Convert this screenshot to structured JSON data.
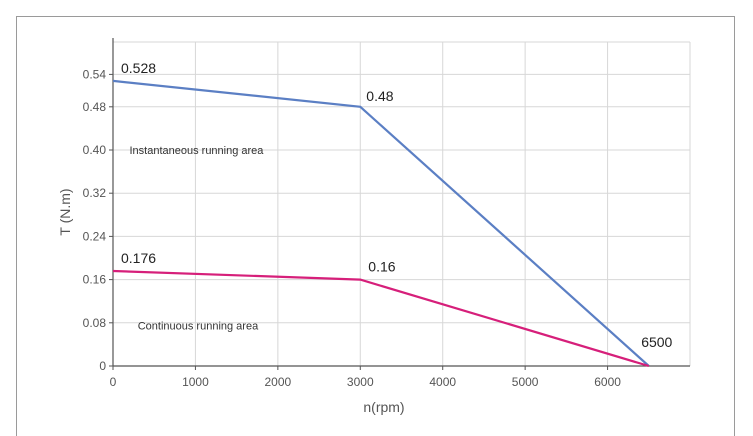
{
  "chart_data": {
    "type": "line",
    "title": "",
    "xlabel": "n(rpm)",
    "ylabel": "T (N.m)",
    "xlim": [
      0,
      7000
    ],
    "ylim": [
      0,
      0.6
    ],
    "grid": true,
    "x_ticks": [
      0,
      1000,
      2000,
      3000,
      4000,
      5000,
      6000
    ],
    "x_tick_labels": [
      "0",
      "1000",
      "2000",
      "3000",
      "4000",
      "5000",
      "6000"
    ],
    "y_ticks": [
      0,
      0.08,
      0.16,
      0.24,
      0.32,
      0.4,
      0.48,
      0.54
    ],
    "y_tick_labels": [
      "0",
      "0.08",
      "0.16",
      "0.24",
      "0.32",
      "0.40",
      "0.48",
      "0.54"
    ],
    "series": [
      {
        "color": "#5b7fc4",
        "points": [
          [
            0,
            0.528
          ],
          [
            3000,
            0.48
          ],
          [
            6500,
            0
          ]
        ]
      },
      {
        "color": "#d61f7a",
        "points": [
          [
            0,
            0.176
          ],
          [
            3000,
            0.16
          ],
          [
            6500,
            0
          ]
        ]
      }
    ],
    "annotations": [
      {
        "text": "0.528",
        "x": 0,
        "y": 0.528
      },
      {
        "text": "0.48",
        "x": 3000,
        "y": 0.48
      },
      {
        "text": "0.176",
        "x": 0,
        "y": 0.176
      },
      {
        "text": "0.16",
        "x": 3000,
        "y": 0.16
      },
      {
        "text": "6500",
        "x": 6500,
        "y": 0
      }
    ],
    "area_labels": [
      {
        "text": "Instantaneous running area",
        "x": 200,
        "y": 0.4
      },
      {
        "text": "Continuous running area",
        "x": 300,
        "y": 0.075
      }
    ]
  }
}
